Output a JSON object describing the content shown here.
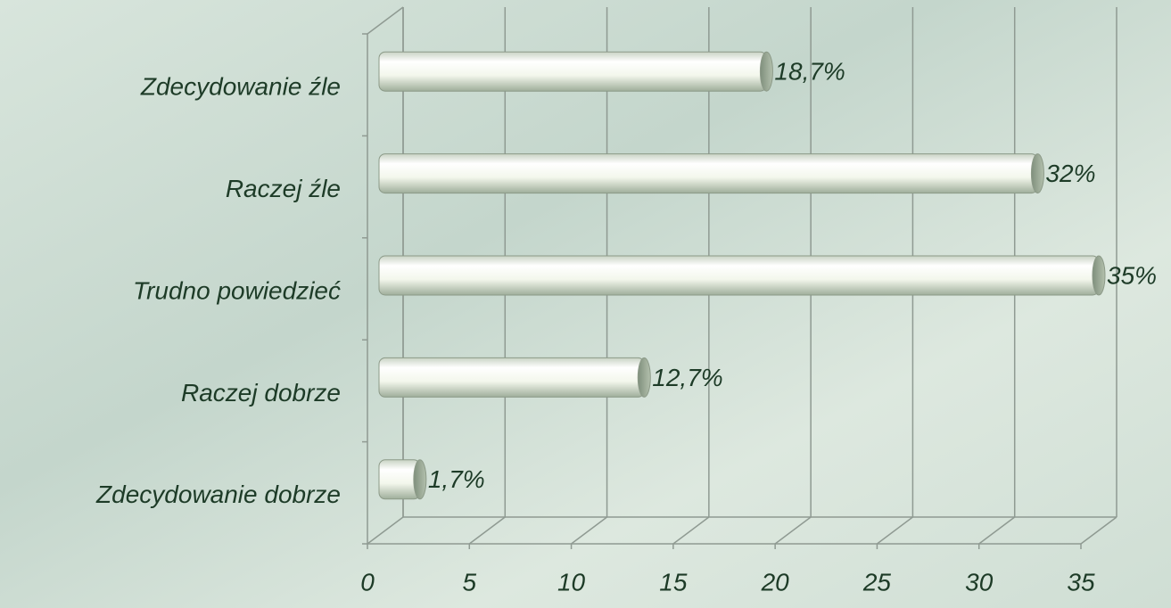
{
  "chart_data": {
    "type": "bar",
    "orientation": "horizontal",
    "categories": [
      "Zdecydowanie źle",
      "Raczej źle",
      "Trudno powiedzieć",
      "Raczej dobrze",
      "Zdecydowanie dobrze"
    ],
    "values": [
      18.7,
      32,
      35,
      12.7,
      1.7
    ],
    "value_labels": [
      "18,7%",
      "32%",
      "35%",
      "12,7%",
      "1,7%"
    ],
    "color": "#f4f8ee",
    "xlim": [
      0,
      35
    ],
    "xticks": [
      0,
      5,
      10,
      15,
      20,
      25,
      30,
      35
    ],
    "grid": true
  }
}
